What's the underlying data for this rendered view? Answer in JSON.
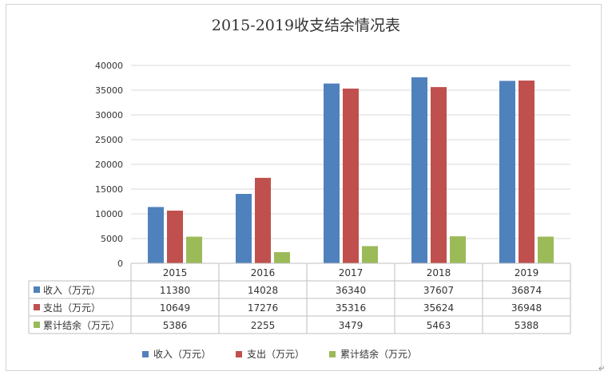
{
  "chart_data": {
    "type": "bar",
    "title": "2015-2019收支结余情况表",
    "categories": [
      "2015",
      "2016",
      "2017",
      "2018",
      "2019"
    ],
    "series": [
      {
        "name": "收入（万元）",
        "color": "#4f81bd",
        "values": [
          11380,
          14028,
          36340,
          37607,
          36874
        ]
      },
      {
        "name": "支出（万元）",
        "color": "#c0504d",
        "values": [
          10649,
          17276,
          35316,
          35624,
          36948
        ]
      },
      {
        "name": "累计结余（万元）",
        "color": "#9bbb59",
        "values": [
          5386,
          2255,
          3479,
          5463,
          5388
        ]
      }
    ],
    "ylim": [
      0,
      40000
    ],
    "yticks": [
      "0",
      "5000",
      "10000",
      "15000",
      "20000",
      "25000",
      "30000",
      "35000",
      "40000"
    ],
    "grid": true,
    "legend": "bottom",
    "data_table": true
  },
  "decor": {
    "return_mark": "↵"
  }
}
